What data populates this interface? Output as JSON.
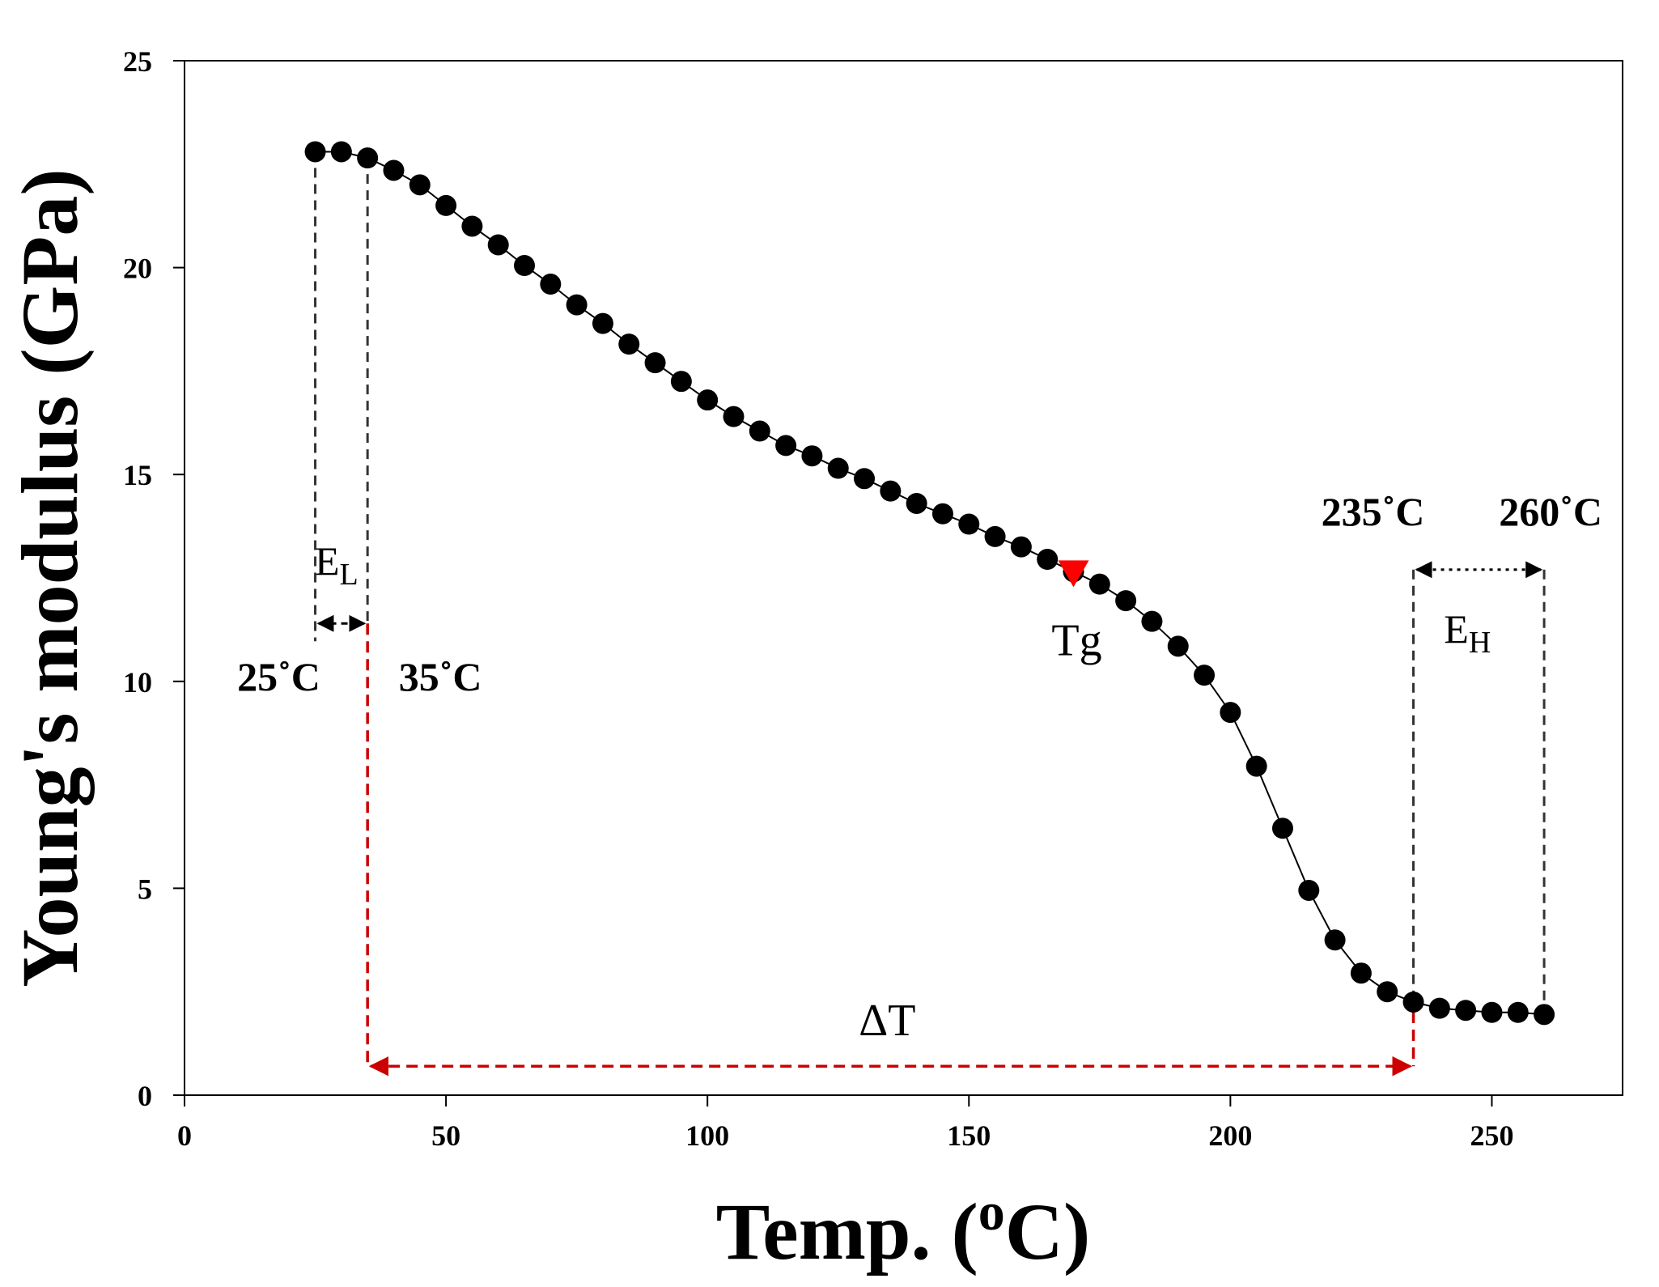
{
  "chart_data": {
    "type": "line",
    "title": "",
    "xlabel": "Temp. (",
    "xlabel_superscript": "o",
    "xlabel_suffix": "C)",
    "ylabel": "Young's modulus (GPa)",
    "xlim": [
      0,
      275
    ],
    "ylim": [
      0,
      25
    ],
    "xticks": [
      0,
      50,
      100,
      150,
      200,
      250
    ],
    "yticks": [
      0,
      5,
      10,
      15,
      20,
      25
    ],
    "grid": false,
    "series": [
      {
        "name": "Young's modulus",
        "marker": "circle",
        "color": "#000000",
        "x": [
          25,
          30,
          35,
          40,
          45,
          50,
          55,
          60,
          65,
          70,
          75,
          80,
          85,
          90,
          95,
          100,
          105,
          110,
          115,
          120,
          125,
          130,
          135,
          140,
          145,
          150,
          155,
          160,
          165,
          170,
          175,
          180,
          185,
          190,
          195,
          200,
          205,
          210,
          215,
          220,
          225,
          230,
          235,
          240,
          245,
          250,
          255,
          260
        ],
        "y": [
          22.8,
          22.8,
          22.65,
          22.35,
          22.0,
          21.5,
          21.0,
          20.55,
          20.05,
          19.6,
          19.1,
          18.65,
          18.15,
          17.7,
          17.25,
          16.8,
          16.4,
          16.05,
          15.7,
          15.45,
          15.15,
          14.9,
          14.6,
          14.3,
          14.05,
          13.8,
          13.5,
          13.25,
          12.95,
          12.65,
          12.35,
          11.95,
          11.45,
          10.85,
          10.15,
          9.25,
          7.95,
          6.45,
          4.95,
          3.75,
          2.95,
          2.5,
          2.25,
          2.1,
          2.05,
          2.0,
          2.0,
          1.95
        ]
      }
    ],
    "tg_marker": {
      "label": "Tg",
      "x": 170,
      "y": 12.65,
      "color": "#ff0000"
    },
    "annotations": {
      "el_label": "E",
      "el_sub": "L",
      "eh_label": "E",
      "eh_sub": "H",
      "t25": "25",
      "t35": "35",
      "t235": "235",
      "t260": "260",
      "deg_unit": "˚C",
      "delta_t": "ΔT",
      "el_range_x": [
        25,
        35
      ],
      "eh_range_x": [
        235,
        260
      ],
      "delta_range_x": [
        35,
        235
      ],
      "el_arrow_y": 11.4,
      "eh_arrow_y": 12.7,
      "delta_arrow_y": 0.7,
      "el_line_top_y": 22.8,
      "delta_color": "#cc0000"
    }
  }
}
